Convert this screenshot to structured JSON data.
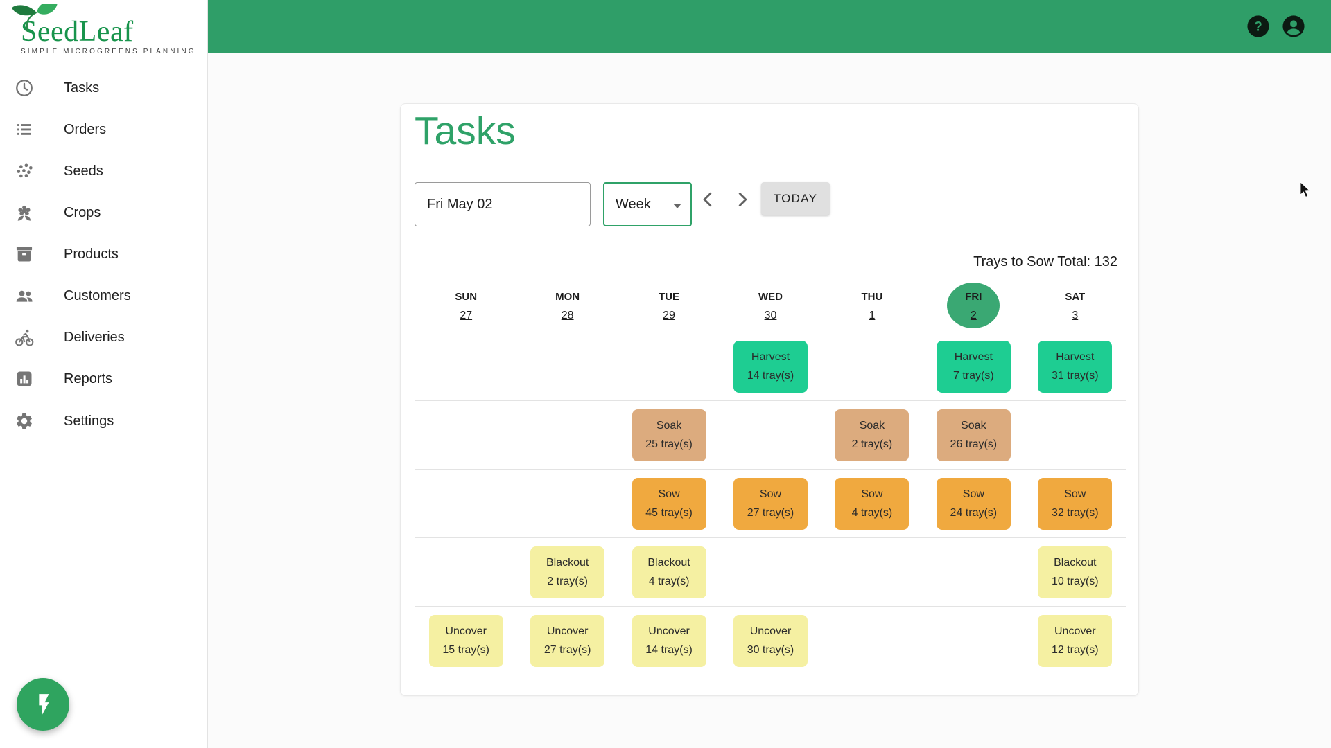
{
  "brand": {
    "name": "SeedLeaf",
    "tagline": "SIMPLE MICROGREENS PLANNING"
  },
  "header": {
    "help_glyph": "?"
  },
  "sidebar": {
    "items": [
      {
        "id": "tasks",
        "label": "Tasks",
        "icon": "clock-icon"
      },
      {
        "id": "orders",
        "label": "Orders",
        "icon": "list-icon"
      },
      {
        "id": "seeds",
        "label": "Seeds",
        "icon": "seeds-icon"
      },
      {
        "id": "crops",
        "label": "Crops",
        "icon": "flower-icon"
      },
      {
        "id": "products",
        "label": "Products",
        "icon": "box-icon"
      },
      {
        "id": "customers",
        "label": "Customers",
        "icon": "people-icon"
      },
      {
        "id": "deliveries",
        "label": "Deliveries",
        "icon": "bicycle-icon"
      },
      {
        "id": "reports",
        "label": "Reports",
        "icon": "bar-chart-icon"
      }
    ],
    "settings_item": {
      "id": "settings",
      "label": "Settings",
      "icon": "gear-icon"
    }
  },
  "page": {
    "title": "Tasks",
    "date_value": "Fri May 02",
    "view_value": "Week",
    "today_label": "TODAY",
    "trays_total_label": "Trays to Sow Total: 132"
  },
  "calendar": {
    "days": [
      {
        "weekday": "SUN",
        "date": "27",
        "selected": false
      },
      {
        "weekday": "MON",
        "date": "28",
        "selected": false
      },
      {
        "weekday": "TUE",
        "date": "29",
        "selected": false
      },
      {
        "weekday": "WED",
        "date": "30",
        "selected": false
      },
      {
        "weekday": "THU",
        "date": "1",
        "selected": false
      },
      {
        "weekday": "FRI",
        "date": "2",
        "selected": true
      },
      {
        "weekday": "SAT",
        "date": "3",
        "selected": false
      }
    ],
    "task_rows": [
      {
        "type": "Harvest",
        "color": "#1ecd92",
        "cells": [
          null,
          null,
          null,
          14,
          null,
          7,
          31
        ]
      },
      {
        "type": "Soak",
        "color": "#dcab7e",
        "cells": [
          null,
          null,
          25,
          null,
          2,
          26,
          null
        ]
      },
      {
        "type": "Sow",
        "color": "#f0a93f",
        "cells": [
          null,
          null,
          45,
          27,
          4,
          24,
          32
        ]
      },
      {
        "type": "Blackout",
        "color": "#f5f0a2",
        "cells": [
          null,
          2,
          4,
          null,
          null,
          null,
          10
        ]
      },
      {
        "type": "Uncover",
        "color": "#f5f0a2",
        "cells": [
          15,
          27,
          14,
          30,
          null,
          null,
          12
        ]
      }
    ],
    "tray_unit": "tray(s)"
  },
  "colors": {
    "header_green": "#2f9e68",
    "accent_green": "#2fa268",
    "selected_day_green": "#3aa873",
    "fab_green": "#2fa45f"
  }
}
